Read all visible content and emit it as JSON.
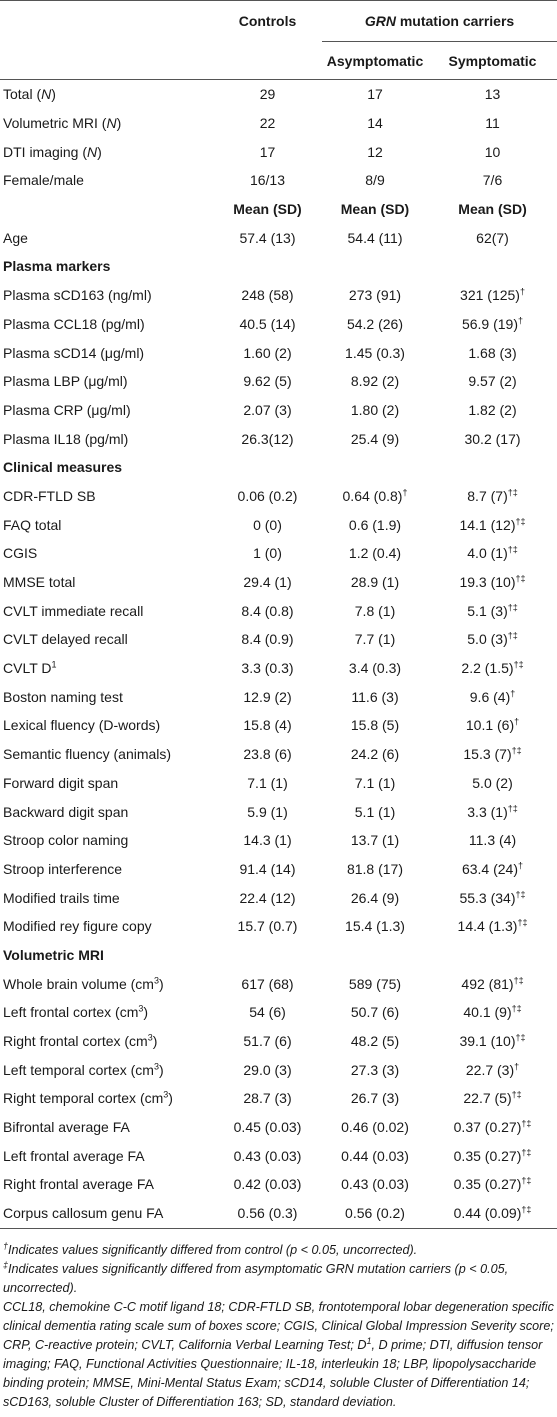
{
  "table": {
    "header": {
      "controls": "Controls",
      "group": [
        {
          "text": "GRN",
          "style": "i"
        },
        {
          "text": " mutation carriers"
        }
      ],
      "sub": [
        "Asymptomatic",
        "Symptomatic"
      ]
    },
    "rows": [
      {
        "cells": [
          [
            {
              "text": "Total ("
            },
            {
              "text": "N",
              "style": "i"
            },
            {
              "text": ")"
            }
          ],
          "29",
          "17",
          "13"
        ]
      },
      {
        "cells": [
          [
            {
              "text": "Volumetric MRI ("
            },
            {
              "text": "N",
              "style": "i"
            },
            {
              "text": ")"
            }
          ],
          "22",
          "14",
          "11"
        ]
      },
      {
        "cells": [
          [
            {
              "text": "DTI imaging ("
            },
            {
              "text": "N",
              "style": "i"
            },
            {
              "text": ")"
            }
          ],
          "17",
          "12",
          "10"
        ]
      },
      {
        "cells": [
          "Female/male",
          "16/13",
          "8/9",
          "7/6"
        ]
      },
      {
        "stat_heads": [
          "Mean (SD)",
          "Mean (SD)",
          "Mean (SD)"
        ]
      },
      {
        "cells": [
          "Age",
          "57.4 (13)",
          "54.4 (11)",
          "62(7)"
        ]
      },
      {
        "section": "Plasma markers"
      },
      {
        "cells": [
          "Plasma sCD163 (ng/ml)",
          "248 (58)",
          "273 (91)",
          [
            {
              "text": "321 (125)"
            },
            {
              "text": "†",
              "style": "sup"
            }
          ]
        ]
      },
      {
        "cells": [
          "Plasma CCL18 (pg/ml)",
          "40.5 (14)",
          "54.2 (26)",
          [
            {
              "text": "56.9 (19)"
            },
            {
              "text": "†",
              "style": "sup"
            }
          ]
        ]
      },
      {
        "cells": [
          "Plasma sCD14 (μg/ml)",
          "1.60 (2)",
          "1.45 (0.3)",
          "1.68 (3)"
        ]
      },
      {
        "cells": [
          "Plasma LBP (μg/ml)",
          "9.62 (5)",
          "8.92 (2)",
          "9.57 (2)"
        ]
      },
      {
        "cells": [
          "Plasma CRP (μg/ml)",
          "2.07 (3)",
          "1.80 (2)",
          "1.82 (2)"
        ]
      },
      {
        "cells": [
          "Plasma IL18 (pg/ml)",
          "26.3(12)",
          "25.4 (9)",
          "30.2 (17)"
        ]
      },
      {
        "section": "Clinical measures"
      },
      {
        "cells": [
          "CDR-FTLD SB",
          "0.06 (0.2)",
          [
            {
              "text": "0.64 (0.8)"
            },
            {
              "text": "†",
              "style": "sup"
            }
          ],
          [
            {
              "text": "8.7 (7)"
            },
            {
              "text": "†‡",
              "style": "sup"
            }
          ]
        ]
      },
      {
        "cells": [
          "FAQ total",
          "0 (0)",
          "0.6 (1.9)",
          [
            {
              "text": "14.1 (12)"
            },
            {
              "text": "†‡",
              "style": "sup"
            }
          ]
        ]
      },
      {
        "cells": [
          "CGIS",
          "1 (0)",
          "1.2 (0.4)",
          [
            {
              "text": "4.0 (1)"
            },
            {
              "text": "†‡",
              "style": "sup"
            }
          ]
        ]
      },
      {
        "cells": [
          "MMSE total",
          "29.4 (1)",
          "28.9 (1)",
          [
            {
              "text": "19.3 (10)"
            },
            {
              "text": "†‡",
              "style": "sup"
            }
          ]
        ]
      },
      {
        "cells": [
          "CVLT immediate recall",
          "8.4 (0.8)",
          "7.8 (1)",
          [
            {
              "text": "5.1 (3)"
            },
            {
              "text": "†‡",
              "style": "sup"
            }
          ]
        ]
      },
      {
        "cells": [
          "CVLT delayed recall",
          "8.4 (0.9)",
          "7.7 (1)",
          [
            {
              "text": "5.0 (3)"
            },
            {
              "text": "†‡",
              "style": "sup"
            }
          ]
        ]
      },
      {
        "cells": [
          [
            {
              "text": "CVLT D"
            },
            {
              "text": "1",
              "style": "sup"
            }
          ],
          "3.3 (0.3)",
          "3.4 (0.3)",
          [
            {
              "text": "2.2 (1.5)"
            },
            {
              "text": "†‡",
              "style": "sup"
            }
          ]
        ]
      },
      {
        "cells": [
          "Boston naming test",
          "12.9 (2)",
          "11.6 (3)",
          [
            {
              "text": "9.6 (4)"
            },
            {
              "text": "†",
              "style": "sup"
            }
          ]
        ]
      },
      {
        "cells": [
          "Lexical fluency (D-words)",
          "15.8 (4)",
          "15.8 (5)",
          [
            {
              "text": "10.1 (6)"
            },
            {
              "text": "†",
              "style": "sup"
            }
          ]
        ]
      },
      {
        "cells": [
          "Semantic fluency (animals)",
          "23.8 (6)",
          "24.2 (6)",
          [
            {
              "text": "15.3 (7)"
            },
            {
              "text": "†‡",
              "style": "sup"
            }
          ]
        ]
      },
      {
        "cells": [
          "Forward digit span",
          "7.1 (1)",
          "7.1 (1)",
          "5.0 (2)"
        ]
      },
      {
        "cells": [
          "Backward digit span",
          "5.9 (1)",
          "5.1 (1)",
          [
            {
              "text": "3.3 (1)"
            },
            {
              "text": "†‡",
              "style": "sup"
            }
          ]
        ]
      },
      {
        "cells": [
          "Stroop color naming",
          "14.3 (1)",
          "13.7 (1)",
          "11.3 (4)"
        ]
      },
      {
        "cells": [
          "Stroop interference",
          "91.4 (14)",
          "81.8 (17)",
          [
            {
              "text": "63.4 (24)"
            },
            {
              "text": "†",
              "style": "sup"
            }
          ]
        ]
      },
      {
        "cells": [
          "Modified trails time",
          "22.4 (12)",
          "26.4 (9)",
          [
            {
              "text": "55.3 (34)"
            },
            {
              "text": "†‡",
              "style": "sup"
            }
          ]
        ]
      },
      {
        "cells": [
          "Modified rey figure copy",
          "15.7 (0.7)",
          "15.4 (1.3)",
          [
            {
              "text": "14.4 (1.3)"
            },
            {
              "text": "†‡",
              "style": "sup"
            }
          ]
        ]
      },
      {
        "section": "Volumetric MRI"
      },
      {
        "cells": [
          [
            {
              "text": "Whole brain volume (cm"
            },
            {
              "text": "3",
              "style": "sup"
            },
            {
              "text": ")"
            }
          ],
          "617 (68)",
          "589 (75)",
          [
            {
              "text": "492 (81)"
            },
            {
              "text": "†‡",
              "style": "sup"
            }
          ]
        ]
      },
      {
        "cells": [
          [
            {
              "text": "Left frontal cortex (cm"
            },
            {
              "text": "3",
              "style": "sup"
            },
            {
              "text": ")"
            }
          ],
          "54 (6)",
          "50.7 (6)",
          [
            {
              "text": "40.1 (9)"
            },
            {
              "text": "†‡",
              "style": "sup"
            }
          ]
        ]
      },
      {
        "cells": [
          [
            {
              "text": "Right frontal cortex (cm"
            },
            {
              "text": "3",
              "style": "sup"
            },
            {
              "text": ")"
            }
          ],
          "51.7 (6)",
          "48.2 (5)",
          [
            {
              "text": "39.1 (10)"
            },
            {
              "text": "†‡",
              "style": "sup"
            }
          ]
        ]
      },
      {
        "cells": [
          [
            {
              "text": "Left temporal cortex (cm"
            },
            {
              "text": "3",
              "style": "sup"
            },
            {
              "text": ")"
            }
          ],
          "29.0 (3)",
          "27.3 (3)",
          [
            {
              "text": "22.7 (3)"
            },
            {
              "text": "†",
              "style": "sup"
            }
          ]
        ]
      },
      {
        "cells": [
          [
            {
              "text": "Right temporal cortex (cm"
            },
            {
              "text": "3",
              "style": "sup"
            },
            {
              "text": ")"
            }
          ],
          "28.7 (3)",
          "26.7 (3)",
          [
            {
              "text": "22.7 (5)"
            },
            {
              "text": "†‡",
              "style": "sup"
            }
          ]
        ]
      },
      {
        "cells": [
          "Bifrontal average FA",
          "0.45 (0.03)",
          "0.46 (0.02)",
          [
            {
              "text": "0.37 (0.27)"
            },
            {
              "text": "†‡",
              "style": "sup"
            }
          ]
        ]
      },
      {
        "cells": [
          "Left frontal average FA",
          "0.43 (0.03)",
          "0.44 (0.03)",
          [
            {
              "text": "0.35 (0.27)"
            },
            {
              "text": "†‡",
              "style": "sup"
            }
          ]
        ]
      },
      {
        "cells": [
          "Right frontal average FA",
          "0.42 (0.03)",
          "0.43 (0.03)",
          [
            {
              "text": "0.35 (0.27)"
            },
            {
              "text": "†‡",
              "style": "sup"
            }
          ]
        ]
      },
      {
        "cells": [
          "Corpus callosum genu FA",
          "0.56 (0.3)",
          "0.56 (0.2)",
          [
            {
              "text": "0.44 (0.09)"
            },
            {
              "text": "†‡",
              "style": "sup"
            }
          ]
        ]
      }
    ]
  },
  "notes": [
    [
      {
        "text": "†",
        "style": "sup"
      },
      {
        "text": "Indicates values significantly differed from control (p < 0.05, uncorrected)."
      }
    ],
    [
      {
        "text": "‡",
        "style": "sup"
      },
      {
        "text": "Indicates values significantly differed from asymptomatic GRN mutation carriers (p < 0.05, uncorrected)."
      }
    ],
    [
      {
        "text": "CCL18, chemokine C-C motif ligand 18; CDR-FTLD SB, frontotemporal lobar degeneration specific clinical dementia rating scale sum of boxes score; CGIS, Clinical Global Impression Severity score; CRP, C-reactive protein; CVLT, California Verbal Learning Test; D"
      },
      {
        "text": "1",
        "style": "sup"
      },
      {
        "text": ", D prime; DTI, diffusion tensor imaging; FAQ, Functional Activities Questionnaire; IL-18, interleukin 18; LBP, lipopolysaccharide binding protein; MMSE, Mini-Mental Status Exam; sCD14, soluble Cluster of Differentiation 14; sCD163, soluble Cluster of Differentiation 163; SD, standard deviation."
      }
    ]
  ]
}
